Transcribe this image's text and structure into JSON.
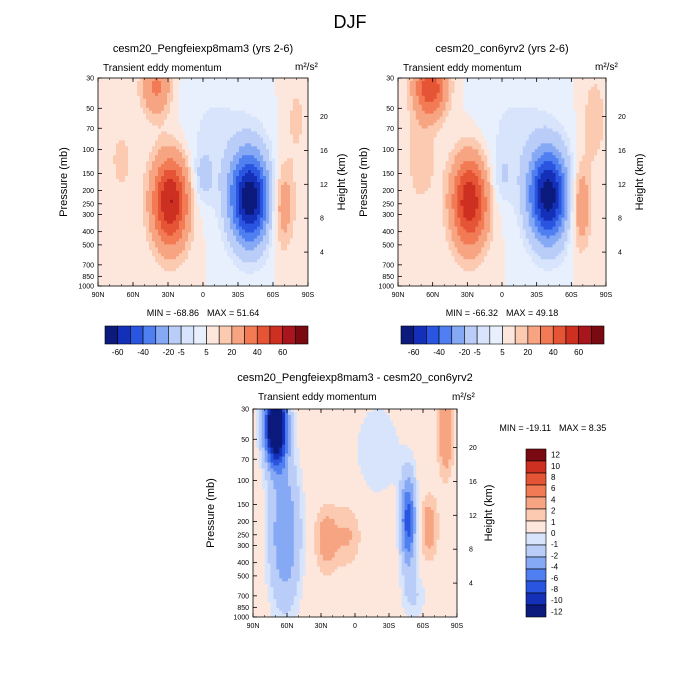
{
  "page_title": "DJF",
  "chart_data": [
    {
      "type": "heatmap",
      "title": "cesm20_Pengfeiexp8mam3 (yrs 2-6)",
      "subtitle_left": "Transient eddy momentum",
      "units": "m²/s²",
      "ylabel": "Pressure (mb)",
      "ylabel_right": "Height (km)",
      "x_ticks": [
        "90N",
        "60N",
        "30N",
        "0",
        "30S",
        "60S",
        "90S"
      ],
      "y_ticks": [
        "30",
        "50",
        "70",
        "100",
        "150",
        "200",
        "250",
        "300",
        "400",
        "500",
        "700",
        "850",
        "1000"
      ],
      "y_ticks_right": [
        "20",
        "16",
        "12",
        "8",
        "4"
      ],
      "min_label": "MIN = -68.86",
      "max_label": "MAX =  51.64",
      "colorbar_labels": [
        "-60",
        "-40",
        "-20",
        "-5",
        "5",
        "20",
        "40",
        "60"
      ],
      "blobs": [
        {
          "lat": 40,
          "p": 35,
          "amp": 22,
          "sx": 9,
          "sy": 0.35
        },
        {
          "lat": 28,
          "p": 240,
          "amp": 51,
          "sx": 11,
          "sy": 0.55
        },
        {
          "lat": 0,
          "p": 160,
          "amp": -12,
          "sx": 6,
          "sy": 0.3
        },
        {
          "lat": -40,
          "p": 230,
          "amp": -68,
          "sx": 12,
          "sy": 0.55
        },
        {
          "lat": -10,
          "p": 80,
          "amp": -6,
          "sx": 25,
          "sy": 0.8
        },
        {
          "lat": -68,
          "p": 260,
          "amp": 18,
          "sx": 7,
          "sy": 0.5
        },
        {
          "lat": 70,
          "p": 120,
          "amp": 6,
          "sx": 10,
          "sy": 0.6
        },
        {
          "lat": -80,
          "p": 60,
          "amp": 6,
          "sx": 8,
          "sy": 0.6
        }
      ]
    },
    {
      "type": "heatmap",
      "title": "cesm20_con6yrv2 (yrs 2-6)",
      "subtitle_left": "Transient eddy momentum",
      "units": "m²/s²",
      "ylabel": "Pressure (mb)",
      "ylabel_right": "Height (km)",
      "x_ticks": [
        "90N",
        "60N",
        "30N",
        "0",
        "30S",
        "60S",
        "90S"
      ],
      "y_ticks": [
        "30",
        "50",
        "70",
        "100",
        "150",
        "200",
        "250",
        "300",
        "400",
        "500",
        "700",
        "850",
        "1000"
      ],
      "y_ticks_right": [
        "20",
        "16",
        "12",
        "8",
        "4"
      ],
      "min_label": "MIN = -66.32",
      "max_label": "MAX =  49.18",
      "colorbar_labels": [
        "-60",
        "-40",
        "-20",
        "-5",
        "5",
        "20",
        "40",
        "60"
      ],
      "blobs": [
        {
          "lat": 62,
          "p": 35,
          "amp": 38,
          "sx": 10,
          "sy": 0.35
        },
        {
          "lat": 28,
          "p": 240,
          "amp": 49,
          "sx": 11,
          "sy": 0.55
        },
        {
          "lat": 0,
          "p": 160,
          "amp": -8,
          "sx": 6,
          "sy": 0.3
        },
        {
          "lat": -40,
          "p": 220,
          "amp": -66,
          "sx": 12,
          "sy": 0.55
        },
        {
          "lat": -10,
          "p": 80,
          "amp": -6,
          "sx": 25,
          "sy": 0.8
        },
        {
          "lat": -68,
          "p": 260,
          "amp": 20,
          "sx": 6,
          "sy": 0.5
        },
        {
          "lat": 70,
          "p": 120,
          "amp": 8,
          "sx": 10,
          "sy": 0.6
        },
        {
          "lat": -80,
          "p": 60,
          "amp": 8,
          "sx": 8,
          "sy": 0.6
        }
      ]
    },
    {
      "type": "heatmap",
      "title": "cesm20_Pengfeiexp8mam3 - cesm20_con6yrv2",
      "subtitle_left": "Transient eddy momentum",
      "units": "m²/s²",
      "ylabel": "Pressure (mb)",
      "ylabel_right": "Height (km)",
      "x_ticks": [
        "90N",
        "60N",
        "30N",
        "0",
        "30S",
        "60S",
        "90S"
      ],
      "y_ticks": [
        "30",
        "50",
        "70",
        "100",
        "150",
        "200",
        "250",
        "300",
        "400",
        "500",
        "700",
        "850",
        "1000"
      ],
      "y_ticks_right": [
        "20",
        "16",
        "12",
        "8",
        "4"
      ],
      "min_label": "MIN = -19.11",
      "max_label": "MAX =   8.35",
      "colorbar_labels": [
        "12",
        "10",
        "8",
        "6",
        "4",
        "2",
        "1",
        "0",
        "-1",
        "-2",
        "-4",
        "-6",
        "-8",
        "-10",
        "-12"
      ],
      "blobs": [
        {
          "lat": 70,
          "p": 40,
          "amp": -18,
          "sx": 7,
          "sy": 0.45
        },
        {
          "lat": 62,
          "p": 250,
          "amp": -6,
          "sx": 10,
          "sy": 0.9
        },
        {
          "lat": 25,
          "p": 270,
          "amp": 3,
          "sx": 8,
          "sy": 0.4
        },
        {
          "lat": 5,
          "p": 250,
          "amp": 2,
          "sx": 8,
          "sy": 0.4
        },
        {
          "lat": -47,
          "p": 200,
          "amp": -9,
          "sx": 5,
          "sy": 0.55
        },
        {
          "lat": -65,
          "p": 220,
          "amp": 3,
          "sx": 6,
          "sy": 0.4
        },
        {
          "lat": -80,
          "p": 45,
          "amp": 4,
          "sx": 5,
          "sy": 0.5
        },
        {
          "lat": -20,
          "p": 60,
          "amp": -2,
          "sx": 15,
          "sy": 0.6
        },
        {
          "lat": -52,
          "p": 700,
          "amp": -2,
          "sx": 8,
          "sy": 0.3
        }
      ]
    }
  ]
}
